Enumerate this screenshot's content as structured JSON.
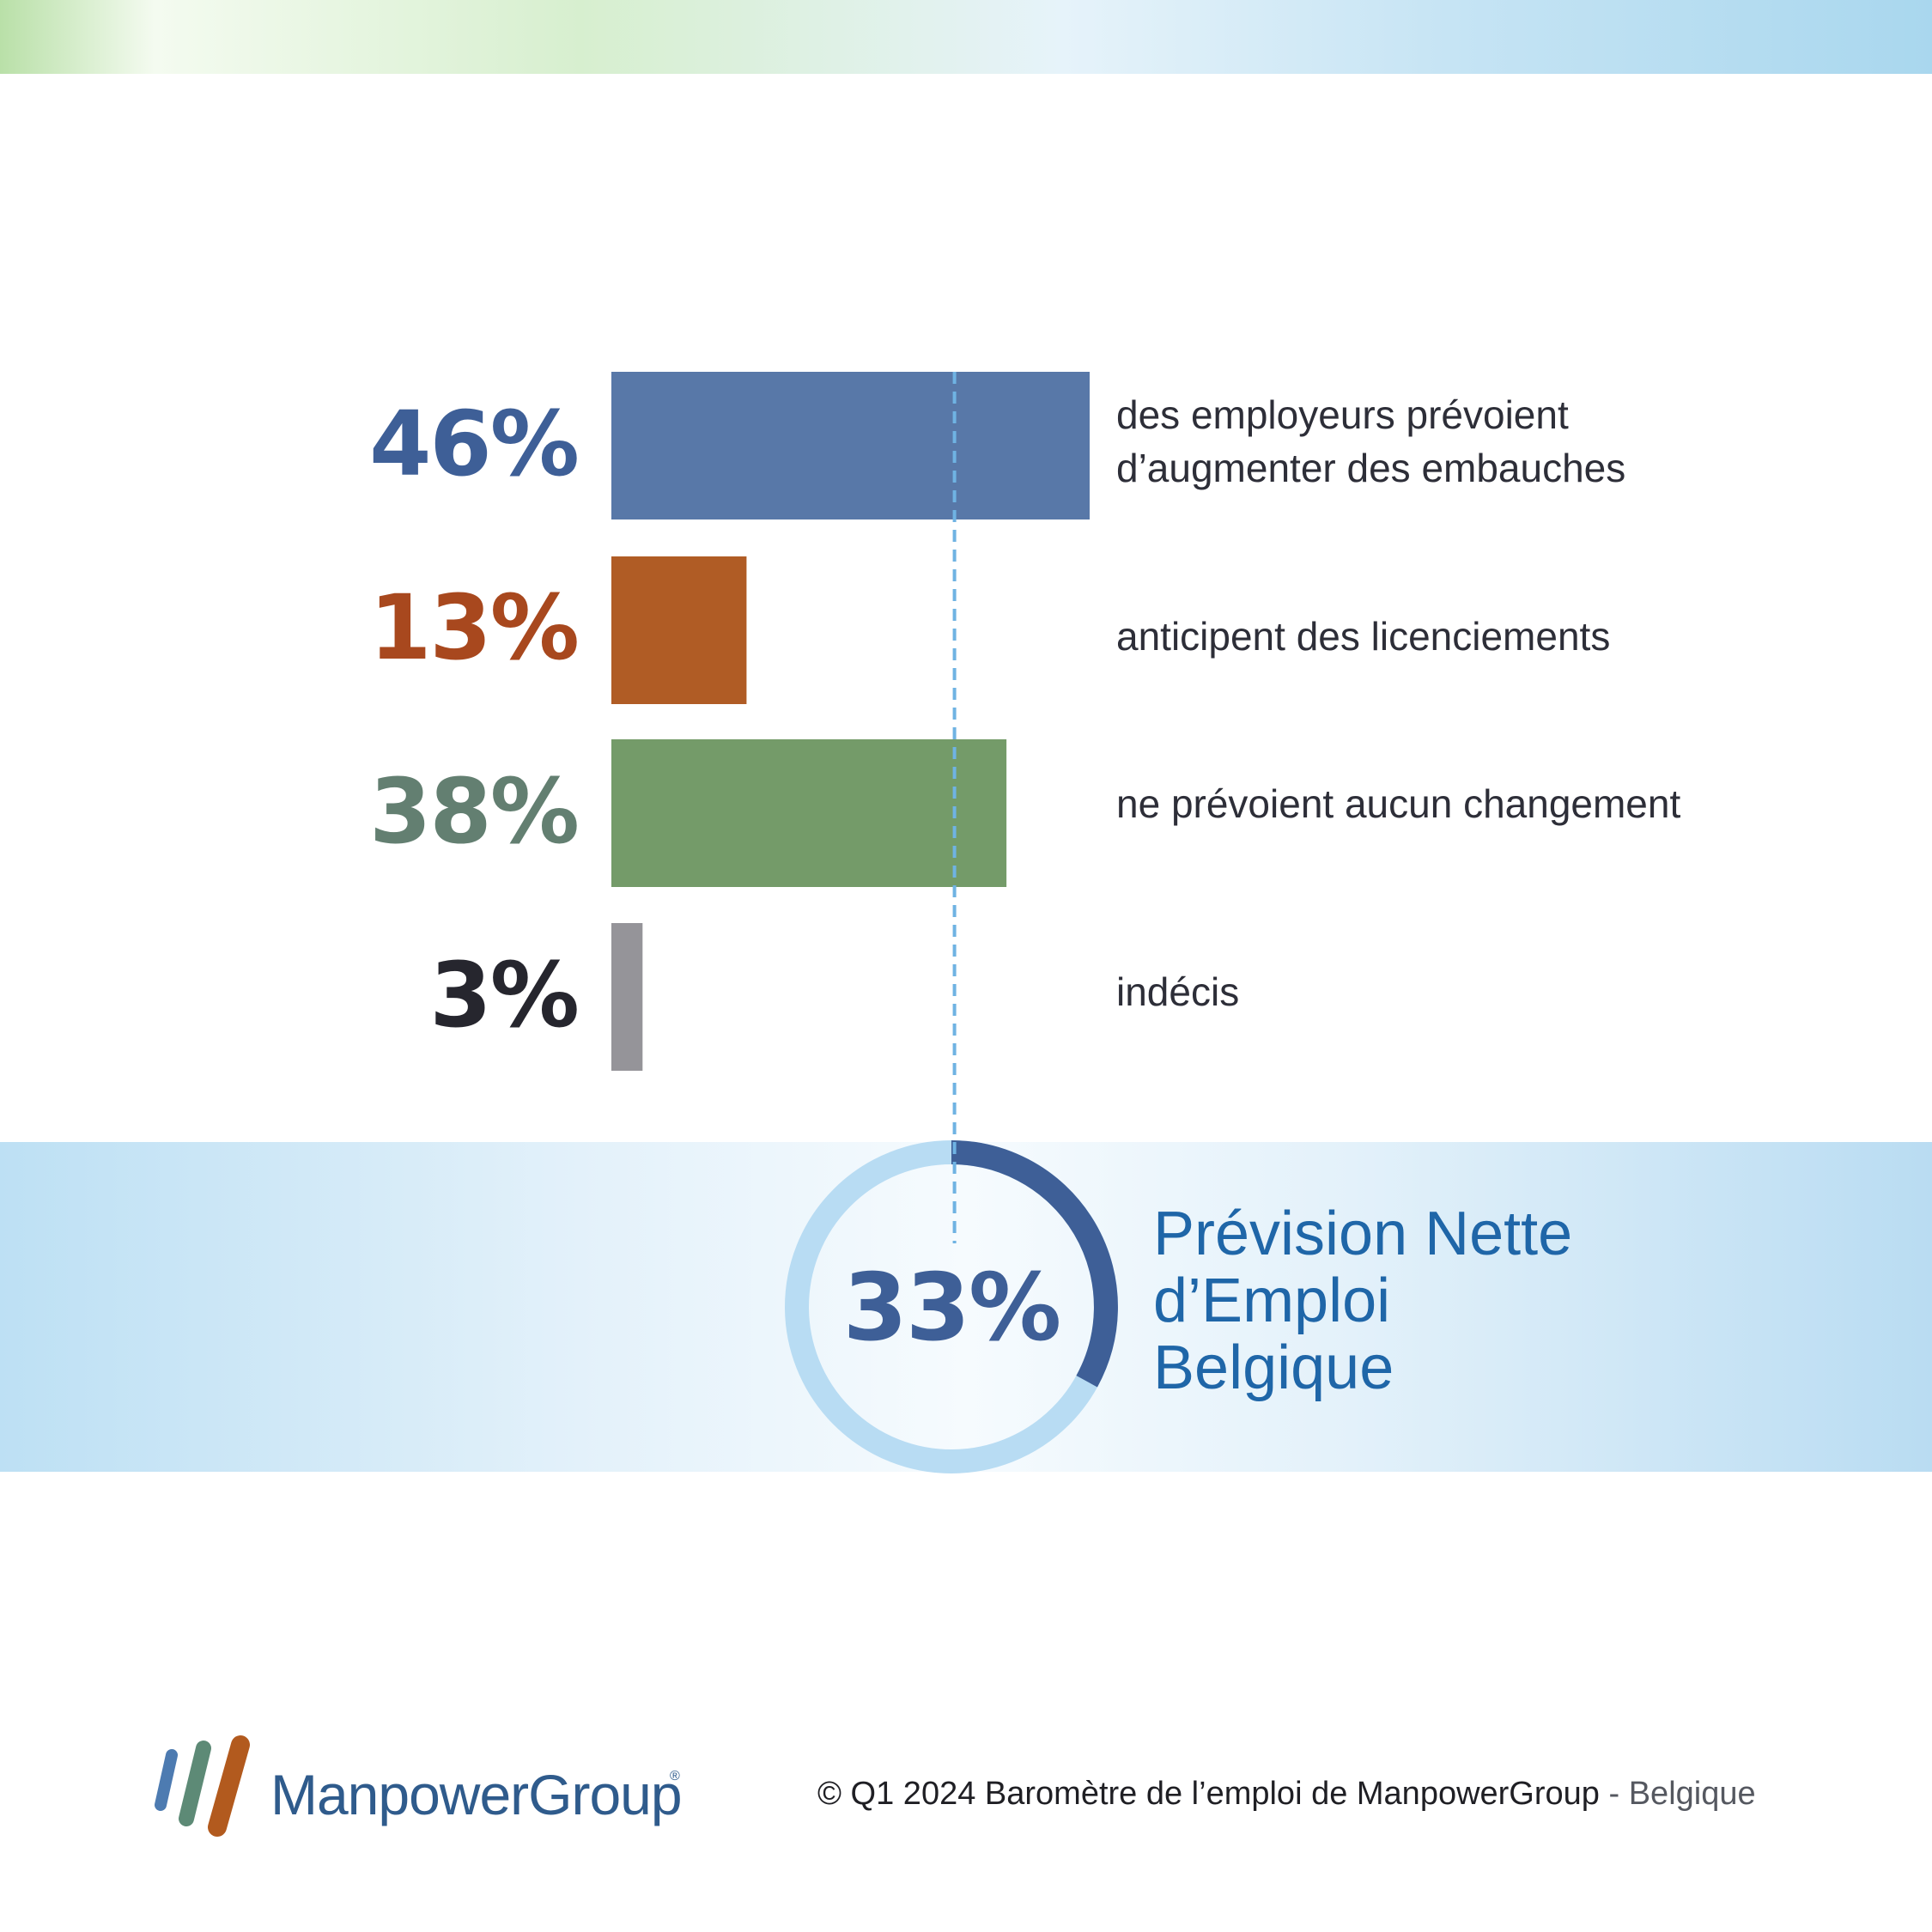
{
  "colors": {
    "increase": "#5878a8",
    "increase_text": "#3e5f97",
    "decrease": "#b05c25",
    "decrease_text": "#a8481e",
    "no_change": "#749b69",
    "no_change_text": "#637f71",
    "undecided": "#959499",
    "undecided_text": "#26262e",
    "dashed_line": "#6fb3e3",
    "ring_track": "#b8dcf3",
    "ring_progress": "#3e5f97",
    "title_blue": "#1f66a8"
  },
  "chart_data": {
    "type": "bar",
    "orientation": "horizontal",
    "xlim": [
      0,
      46
    ],
    "categories": [
      "des employeurs prévoient d’augmenter des embauches",
      "anticipent des licenciements",
      "ne prévoient aucun changement",
      "indécis"
    ],
    "values": [
      46,
      13,
      38,
      3
    ],
    "value_labels": [
      "46%",
      "13%",
      "38%",
      "3%"
    ],
    "label_lines": [
      [
        "des employeurs prévoient",
        "d’augmenter des embauches"
      ],
      [
        "anticipent des licenciements"
      ],
      [
        "ne prévoient aucun changement"
      ],
      [
        "indécis"
      ]
    ],
    "net_value": 33,
    "net_label": "33%",
    "net_title_lines": [
      "Prévision Nette",
      "d’Emploi",
      "Belgique"
    ]
  },
  "logo": {
    "name": "ManpowerGroup",
    "stripe_colors": [
      "#4d7bb1",
      "#5d8a76",
      "#b25a1e"
    ]
  },
  "footer": {
    "main": "© Q1 2024 Baromètre de l’emploi de ManpowerGroup",
    "suffix": "- Belgique"
  }
}
